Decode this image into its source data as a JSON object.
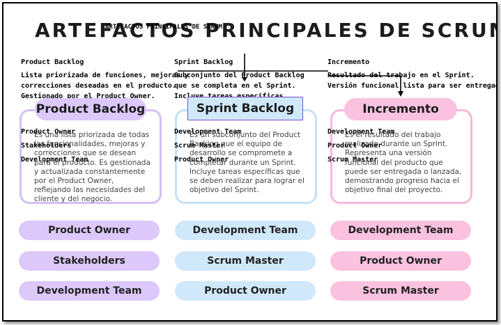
{
  "title": "ARTEFACTOS PRINCIPALES DE SCRUM",
  "overlay_title": "ARTEFACTOS PRINCIPALES DE SCRUM",
  "columns": [
    {
      "overlay_heading": "Product Backlog",
      "overlay_lines": [
        "Lista priorizada de funciones, mejoras y",
        "correcciones deseadas en el producto.",
        "Gestionado por el Product Owner."
      ],
      "header": "Product Backlog",
      "description": "Es una lista priorizada de todas las funcionalidades, mejoras y correcciones que se desean para el producto. Es gestionada y actualizada constantemente por el Product Owner, reflejando las necesidades del cliente y del negocio.",
      "overlay_roles": [
        "Product Owner",
        "Stakeholders",
        "Development Team"
      ],
      "roles": [
        "Product Owner",
        "Stakeholders",
        "Development Team"
      ],
      "accent": "#dcc8fa",
      "border": "#d4bff5"
    },
    {
      "overlay_heading": "Sprint Backlog",
      "overlay_lines": [
        "Subconjunto del Product Backlog",
        "que se completa en el Sprint.",
        "Incluye tareas específicas."
      ],
      "header": "Sprint Backlog",
      "description": "Es un subconjunto del Product Backlog que el equipo de desarrollo se compromete a completar durante un Sprint. Incluye tareas específicas que se deben realizar para lograr el objetivo del Sprint.",
      "overlay_roles": [
        "Development Team",
        "Scrum Master",
        "Product Owner"
      ],
      "roles": [
        "Development Team",
        "Scrum Master",
        "Product Owner"
      ],
      "accent": "#cfe9fa",
      "border": "#c3e2f7"
    },
    {
      "overlay_heading": "Incremento",
      "overlay_lines": [
        "Resultado del trabajo en el Sprint.",
        "Versión funcional lista para ser entregada."
      ],
      "header": "Incremento",
      "description": "Es el resultado del trabajo realizado durante un Sprint. Representa una versión funcional del producto que puede ser entregada o lanzada, demostrando progreso hacia el objetivo final del proyecto.",
      "overlay_roles": [
        "Development Team",
        "Product Owner",
        "Scrum Master"
      ],
      "roles": [
        "Development Team",
        "Product Owner",
        "Scrum Master"
      ],
      "accent": "#fbc2e0",
      "border": "#f7b8da"
    }
  ]
}
